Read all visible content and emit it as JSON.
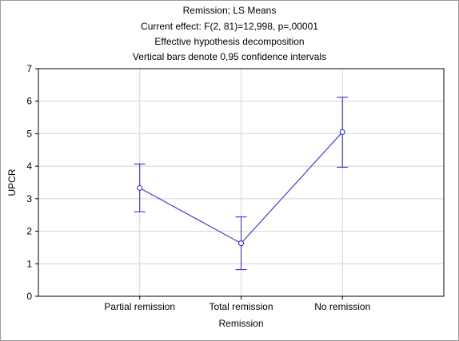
{
  "chart_data": {
    "type": "line",
    "title": "Remission; LS Means",
    "subtitle_lines": [
      "Current effect: F(2, 81)=12,998, p=,00001",
      "Effective hypothesis decomposition",
      "Vertical bars denote 0,95 confidence intervals"
    ],
    "xlabel": "Remission",
    "ylabel": "UPCR",
    "categories": [
      "Partial remission",
      "Total remission",
      "No remission"
    ],
    "series": [
      {
        "values": [
          3.33,
          1.63,
          5.05
        ],
        "ci_lower": [
          2.6,
          0.82,
          3.97
        ],
        "ci_upper": [
          4.07,
          2.44,
          6.12
        ],
        "color": "#1f1fe0"
      }
    ],
    "ylim": [
      0,
      7
    ],
    "yticks": [
      "0",
      "1",
      "2",
      "3",
      "4",
      "5",
      "6",
      "7"
    ],
    "grid": true,
    "legend": "none"
  }
}
